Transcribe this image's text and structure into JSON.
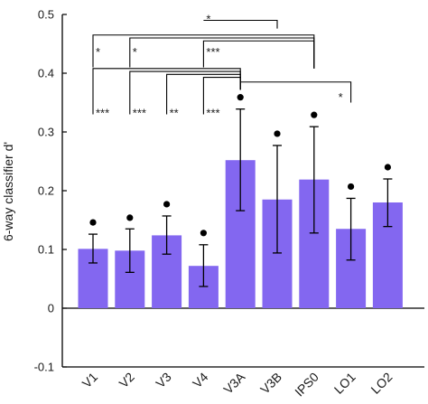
{
  "chart_data": {
    "type": "bar",
    "ylabel": "6-way classifier d'",
    "ylim": [
      -0.1,
      0.5
    ],
    "yticks": [
      -0.1,
      0,
      0.1,
      0.2,
      0.3,
      0.4,
      0.5
    ],
    "ytick_labels": [
      "-0.1",
      "0",
      "0.1",
      "0.2",
      "0.3",
      "0.4",
      "0.5"
    ],
    "categories": [
      "V1",
      "V2",
      "V3",
      "V4",
      "V3A",
      "V3B",
      "IPS0",
      "LO1",
      "LO2"
    ],
    "values": [
      0.101,
      0.098,
      0.124,
      0.072,
      0.252,
      0.185,
      0.219,
      0.135,
      0.18
    ],
    "error_upper": [
      0.126,
      0.135,
      0.157,
      0.108,
      0.339,
      0.277,
      0.309,
      0.187,
      0.22
    ],
    "error_lower": [
      0.077,
      0.061,
      0.092,
      0.037,
      0.166,
      0.094,
      0.128,
      0.082,
      0.139
    ],
    "significance_dots": [
      0.146,
      0.154,
      0.177,
      0.128,
      0.359,
      0.297,
      0.329,
      0.207,
      0.24
    ],
    "bar_color": "#8367f0",
    "brackets": [
      {
        "label": "*",
        "from": "V4",
        "to": "V3B",
        "y": 0.49
      },
      {
        "label": "*",
        "from": "V1",
        "to": "IPS0",
        "y": 0.465
      },
      {
        "label": "*",
        "from": "V2",
        "to": "IPS0",
        "y": 0.46
      },
      {
        "label": "***",
        "from": "V4",
        "to": "IPS0",
        "y": 0.455
      },
      {
        "label": "***",
        "from": "V1",
        "to": "V3A",
        "y": 0.408
      },
      {
        "label": "***",
        "from": "V2",
        "to": "V3A",
        "y": 0.403
      },
      {
        "label": "**",
        "from": "V3",
        "to": "V3A",
        "y": 0.398
      },
      {
        "label": "***",
        "from": "V4",
        "to": "V3A",
        "y": 0.393
      },
      {
        "label": "*",
        "from": "V3A",
        "to": "LO1",
        "y": 0.385
      }
    ],
    "grid": false,
    "legend": "none"
  }
}
